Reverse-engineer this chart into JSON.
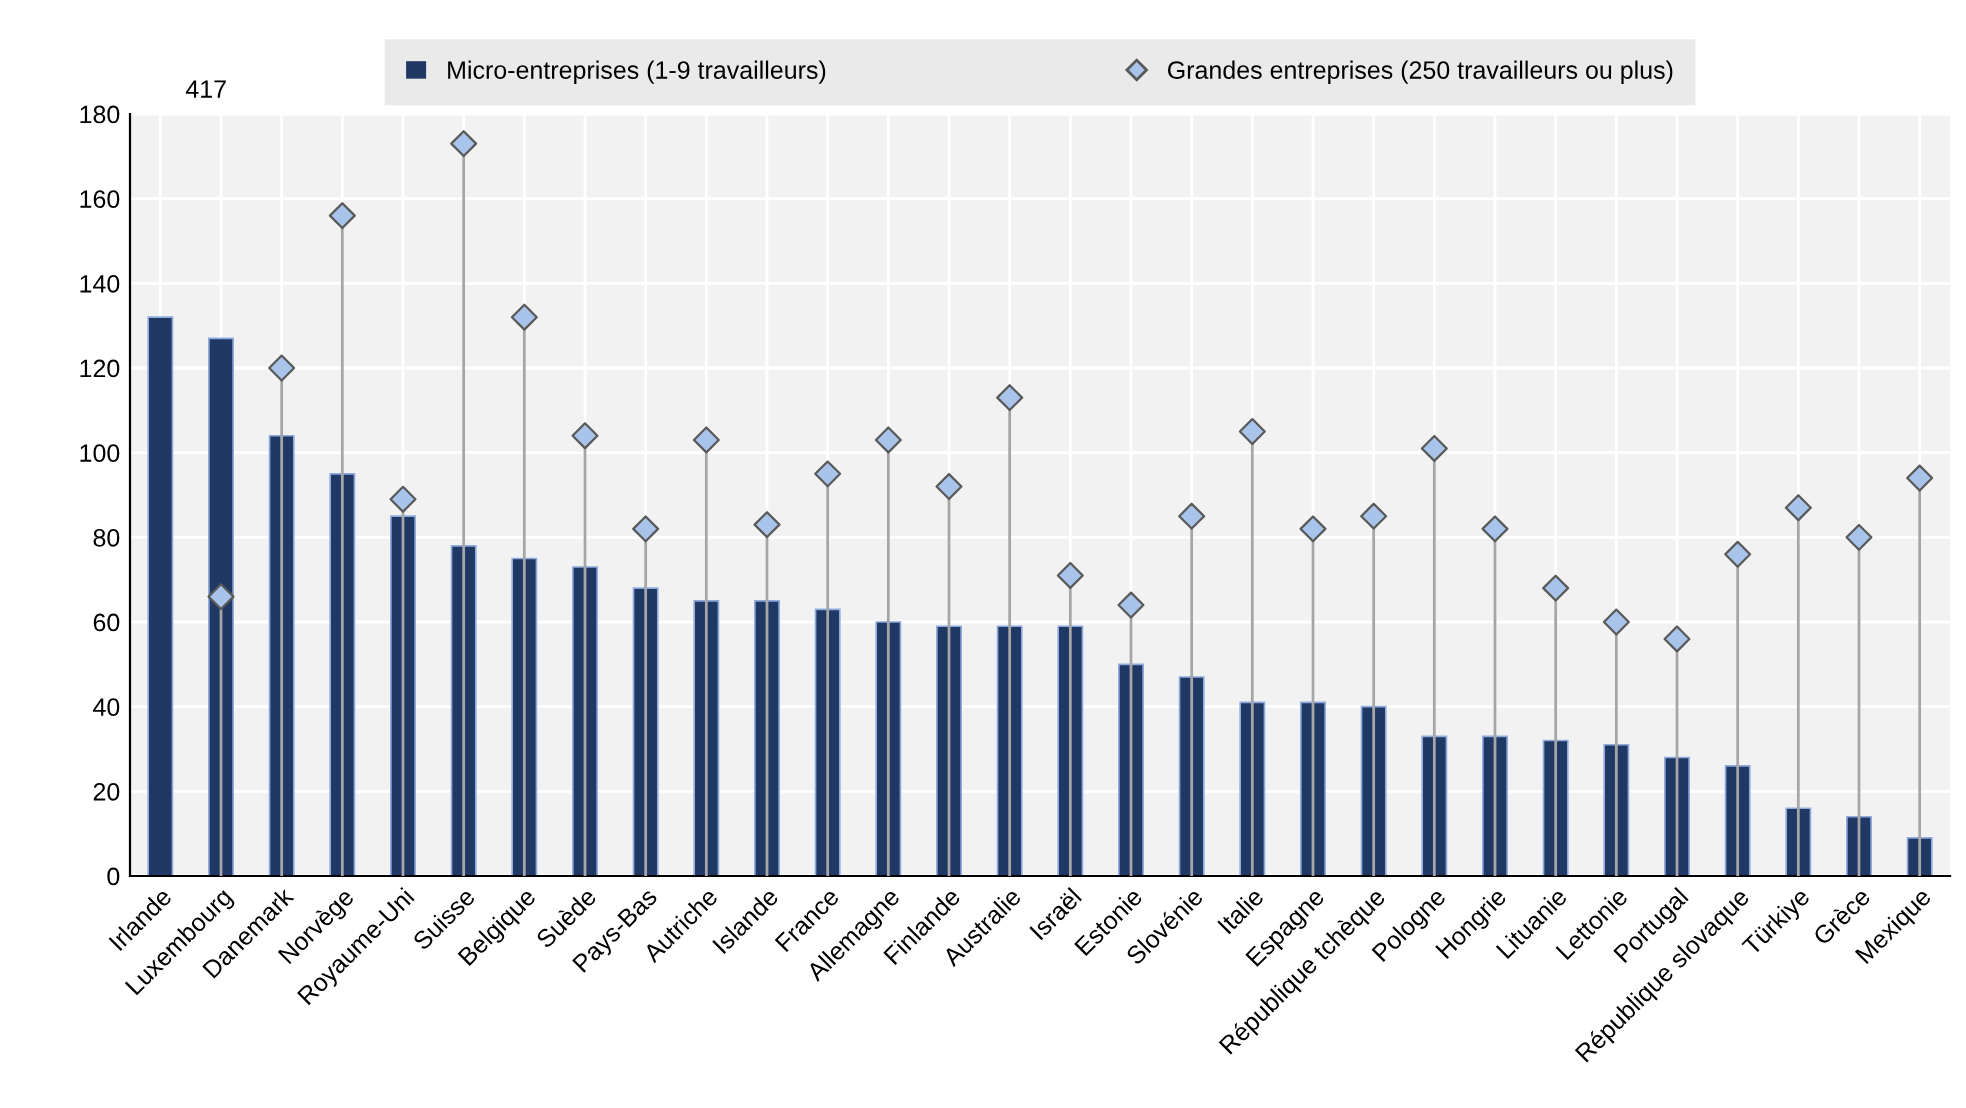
{
  "chart_data": {
    "type": "bar",
    "categories": [
      "Irlande",
      "Luxembourg",
      "Danemark",
      "Norvège",
      "Royaume-Uni",
      "Suisse",
      "Belgique",
      "Suède",
      "Pays-Bas",
      "Autriche",
      "Islande",
      "France",
      "Allemagne",
      "Finlande",
      "Australie",
      "Israël",
      "Estonie",
      "Slovénie",
      "Italie",
      "Espagne",
      "République tchèque",
      "Pologne",
      "Hongrie",
      "Lituanie",
      "Lettonie",
      "Portugal",
      "République slovaque",
      "Türkiye",
      "Grèce",
      "Mexique"
    ],
    "series": [
      {
        "name": "Micro-entreprises (1-9 travailleurs)",
        "color": "#203864",
        "values": [
          132,
          127,
          104,
          95,
          85,
          78,
          75,
          73,
          68,
          65,
          65,
          63,
          60,
          59,
          59,
          59,
          50,
          47,
          41,
          41,
          40,
          33,
          33,
          32,
          31,
          28,
          26,
          16,
          14,
          9
        ]
      },
      {
        "name": "Grandes entreprises (250 travailleurs ou plus)",
        "type": "lollipop",
        "color": "#a9c4eb",
        "marker": "diamond",
        "values": [
          null,
          66,
          120,
          156,
          89,
          173,
          132,
          104,
          82,
          103,
          83,
          95,
          103,
          92,
          113,
          71,
          64,
          85,
          105,
          82,
          85,
          101,
          82,
          68,
          60,
          56,
          76,
          87,
          80,
          94
        ]
      }
    ],
    "annotations": [
      "417"
    ],
    "ylim": [
      0,
      180
    ],
    "yticks": [
      0,
      20,
      40,
      60,
      80,
      100,
      120,
      140,
      160,
      180
    ],
    "grid": true,
    "legend": "top"
  }
}
